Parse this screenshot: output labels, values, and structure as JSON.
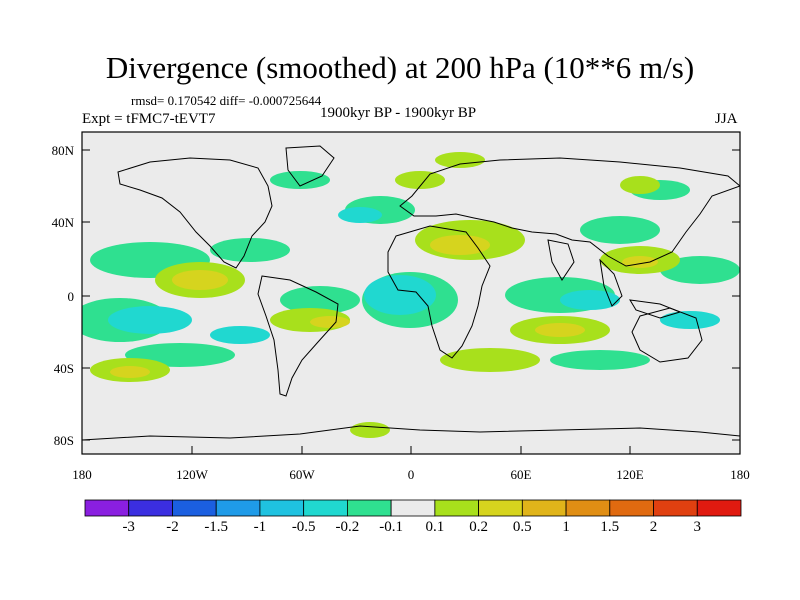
{
  "title": "Divergence (smoothed) at 200 hPa (10**6 m/s)",
  "stats": {
    "rmsd_line": "rmsd= 0.170542 diff= -0.000725644"
  },
  "expt": "Expt = tFMC7-tEVT7",
  "period": "1900kyr BP - 1900kyr BP",
  "season": "JJA",
  "axes": {
    "lat_labels": [
      "80N",
      "40N",
      "0",
      "40S",
      "80S"
    ],
    "lon_labels": [
      "180",
      "120W",
      "60W",
      "0",
      "60E",
      "120E",
      "180"
    ]
  },
  "colorbar": {
    "labels": [
      "-3",
      "-2",
      "-1.5",
      "-1",
      "-0.5",
      "-0.2",
      "-0.1",
      "0.1",
      "0.2",
      "0.5",
      "1",
      "1.5",
      "2",
      "3"
    ],
    "colors": [
      "#8a1fe0",
      "#3b2ee0",
      "#1b5fe0",
      "#1f9be8",
      "#1fc2e0",
      "#20d8d0",
      "#2fe090",
      "#ebebeb",
      "#a8e01c",
      "#d6d41e",
      "#e0b41a",
      "#e08e14",
      "#e06a10",
      "#e04010",
      "#e01a10"
    ]
  },
  "colors": {
    "land_bg": "#ebebeb",
    "neg_weak": "#2fe090",
    "neg_mid": "#20d8d0",
    "pos_weak": "#a8e01c",
    "pos_mid": "#d6d41e"
  }
}
